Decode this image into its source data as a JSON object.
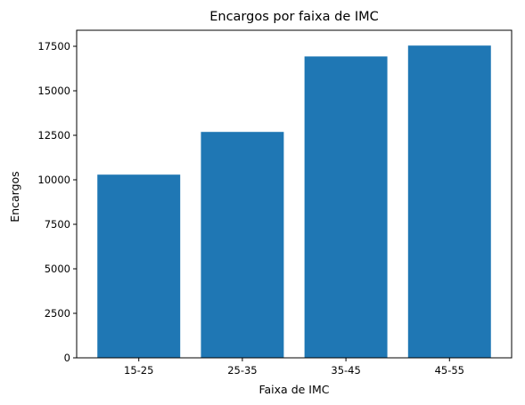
{
  "chart_data": {
    "type": "bar",
    "title": "Encargos por faixa de IMC",
    "xlabel": "Faixa de IMC",
    "ylabel": "Encargos",
    "categories": [
      "15-25",
      "25-35",
      "35-45",
      "45-55"
    ],
    "values": [
      10290,
      12690,
      16930,
      17540
    ],
    "ylim": [
      0,
      18400
    ],
    "yticks": [
      0,
      2500,
      5000,
      7500,
      10000,
      12500,
      15000,
      17500
    ],
    "grid": false,
    "bar_color": "#1f77b4"
  }
}
